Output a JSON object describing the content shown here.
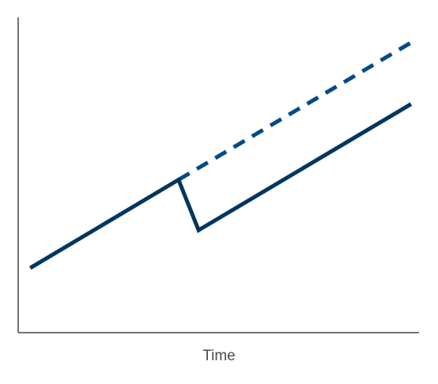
{
  "chart_data": {
    "type": "line",
    "title": "",
    "xlabel": "Time",
    "ylabel": "",
    "grid": false,
    "legend": "none",
    "xlim": [
      0,
      100
    ],
    "ylim": [
      0,
      100
    ],
    "series": [
      {
        "style": "solid",
        "color": "#003660",
        "x": [
          3,
          40,
          45,
          98
        ],
        "y": [
          20.5,
          48.5,
          32.5,
          72.5
        ]
      },
      {
        "style": "dashed",
        "color": "#004B87",
        "x": [
          40,
          98
        ],
        "y": [
          48.5,
          92
        ]
      }
    ]
  }
}
